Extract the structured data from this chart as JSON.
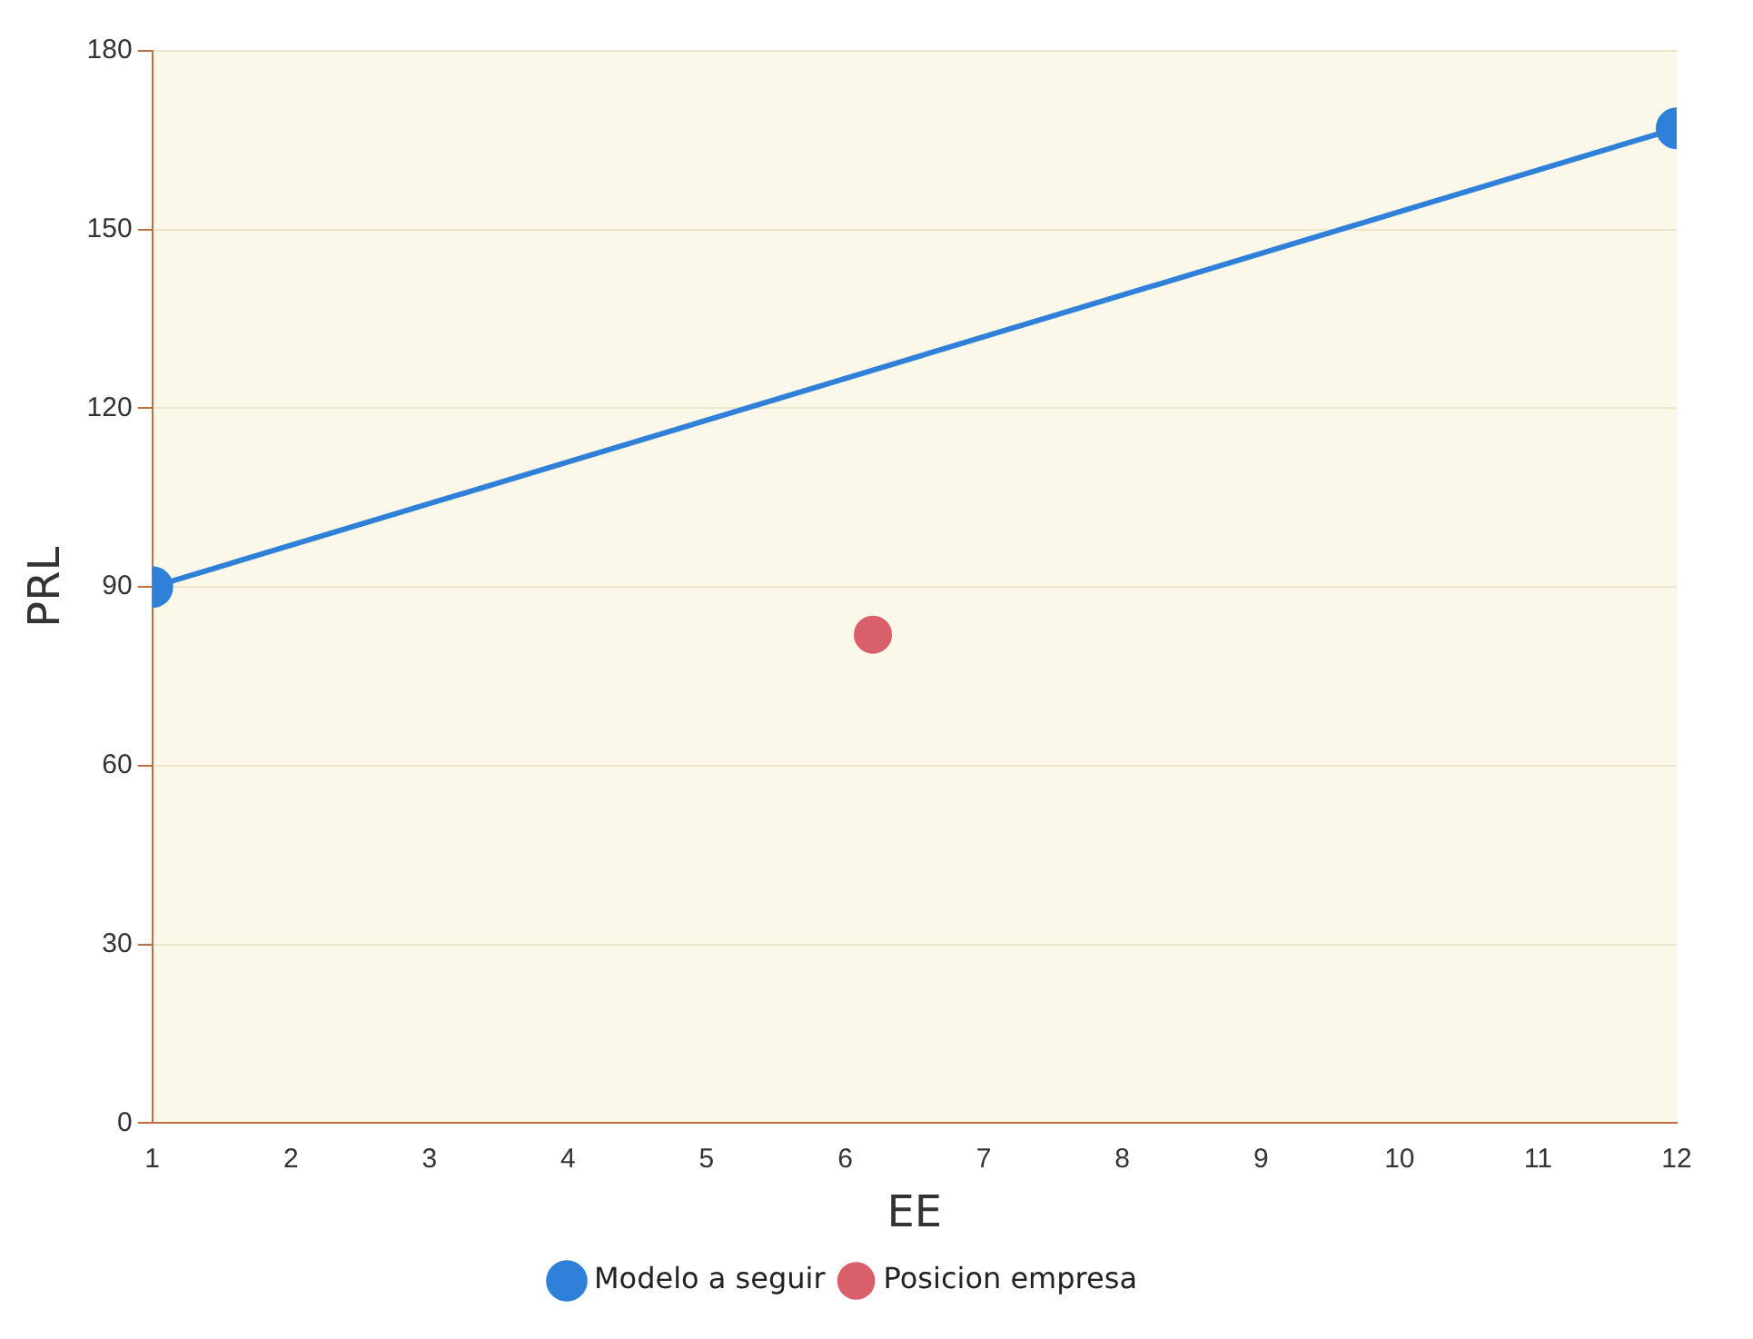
{
  "chart_data": {
    "type": "line",
    "xlabel": "EE",
    "ylabel": "PRL",
    "xlim": [
      1,
      12
    ],
    "xticks": [
      1,
      2,
      3,
      4,
      5,
      6,
      7,
      8,
      9,
      10,
      11,
      12
    ],
    "ylim": [
      0,
      180
    ],
    "yticks": [
      0,
      30,
      60,
      90,
      120,
      150,
      180
    ],
    "grid": "y",
    "legend": "bottom",
    "marker": "circle",
    "series": [
      {
        "name": "Modelo a seguir",
        "type": "line",
        "color": "#2f80d8",
        "x": [
          1,
          12
        ],
        "values": [
          90,
          167
        ]
      },
      {
        "name": "Posicion empresa",
        "type": "scatter",
        "color": "#d9606a",
        "x": [
          6.2
        ],
        "values": [
          82
        ]
      }
    ]
  }
}
